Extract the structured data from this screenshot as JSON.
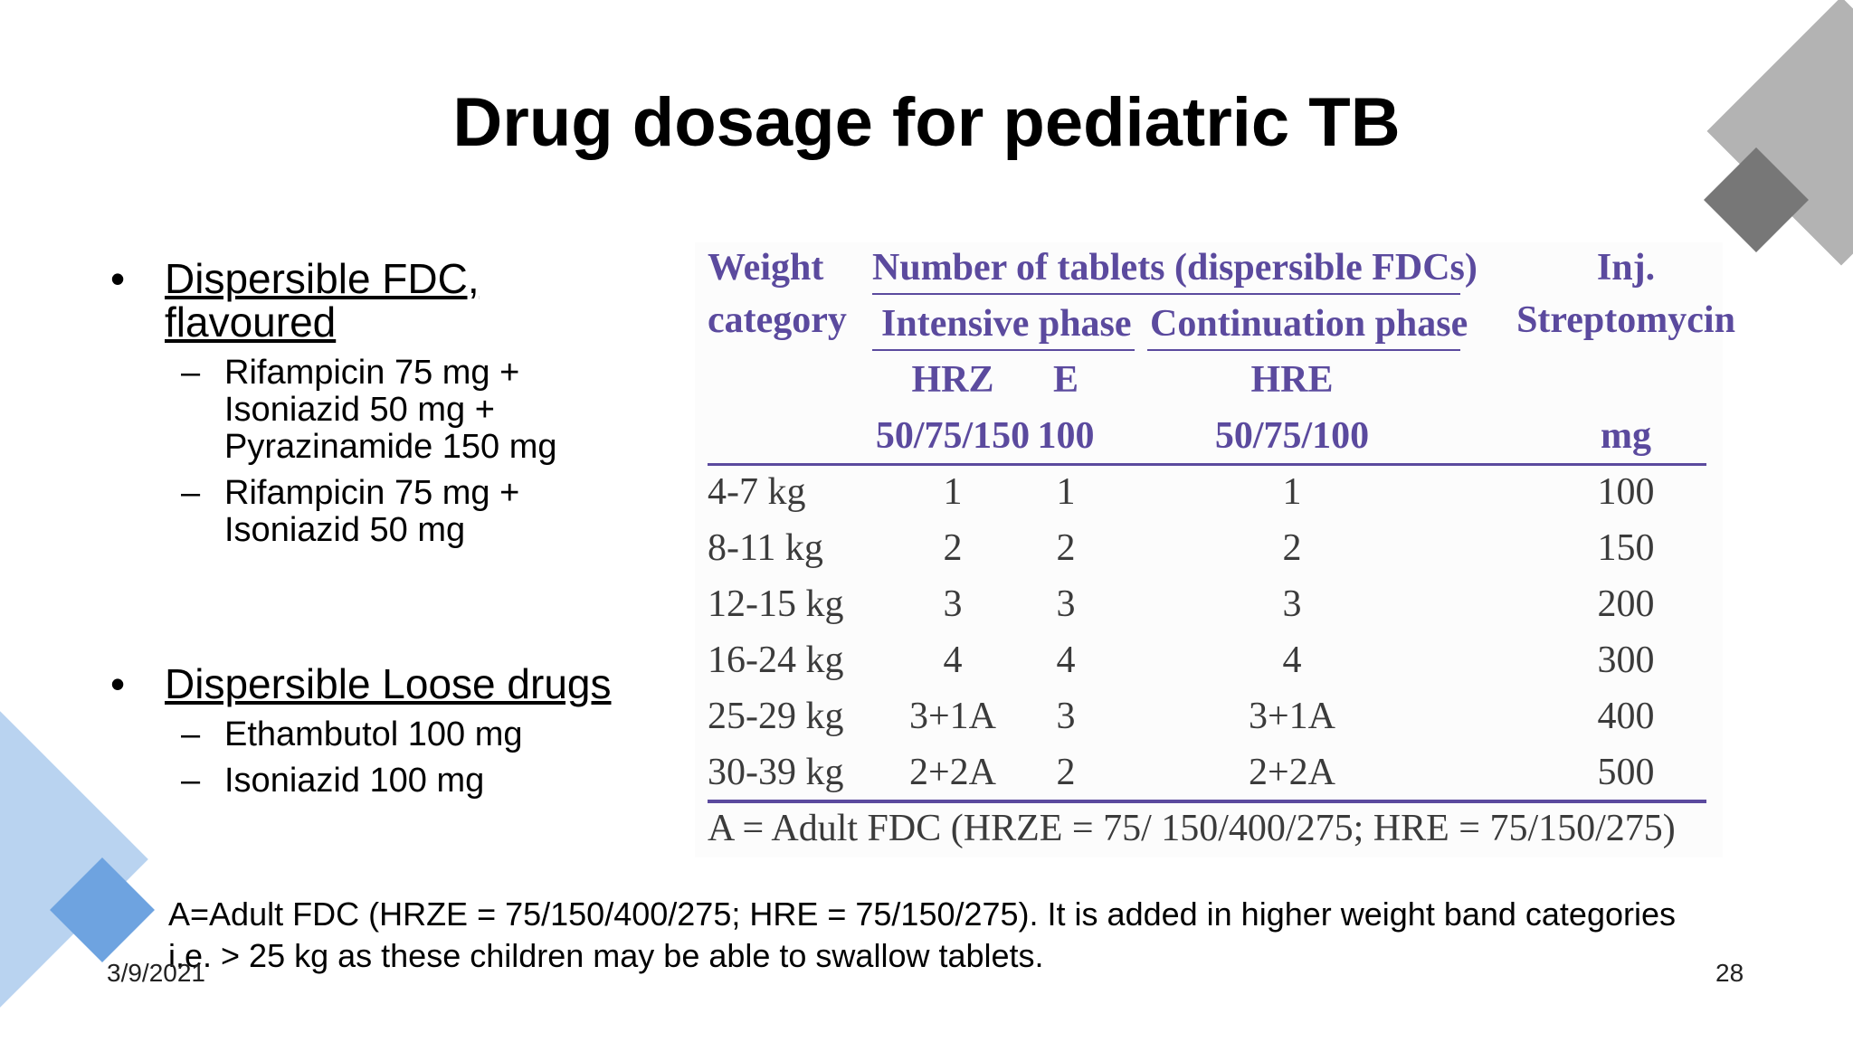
{
  "title": "Drug dosage for pediatric TB",
  "bullets": [
    {
      "heading_lines": [
        "Dispersible FDC,",
        "flavoured"
      ],
      "sub_items": [
        {
          "lines": [
            "Rifampicin 75 mg +",
            "Isoniazid 50 mg +",
            "Pyrazinamide 150 mg"
          ]
        },
        {
          "lines": [
            "Rifampicin 75 mg +",
            "Isoniazid 50 mg"
          ]
        }
      ]
    },
    {
      "heading_lines": [
        "Dispersible Loose drugs"
      ],
      "sub_items": [
        {
          "lines": [
            "Ethambutol 100 mg"
          ]
        },
        {
          "lines": [
            "Isoniazid 100 mg"
          ]
        }
      ]
    }
  ],
  "bullet_symbol": "•",
  "dash_symbol": "–",
  "table": {
    "header": {
      "weight": [
        "Weight",
        "category"
      ],
      "tablets_group": "Number of tablets (dispersible FDCs)",
      "intensive_phase": "Intensive phase",
      "continuation_phase": "Continuation phase",
      "injection": [
        "Inj.",
        "Streptomycin"
      ],
      "drugs": [
        "HRZ",
        "E",
        "HRE"
      ],
      "strengths": [
        "50/75/150",
        "100",
        "50/75/100"
      ],
      "injection_unit": "mg"
    },
    "rows": [
      [
        "4-7 kg",
        "1",
        "1",
        "1",
        "100"
      ],
      [
        "8-11 kg",
        "2",
        "2",
        "2",
        "150"
      ],
      [
        "12-15 kg",
        "3",
        "3",
        "3",
        "200"
      ],
      [
        "16-24 kg",
        "4",
        "4",
        "4",
        "300"
      ],
      [
        "25-29 kg",
        "3+1A",
        "3",
        "3+1A",
        "400"
      ],
      [
        "30-39 kg",
        "2+2A",
        "2",
        "2+2A",
        "500"
      ]
    ],
    "note": "A = Adult FDC (HRZE = 75/ 150/400/275; HRE = 75/150/275)"
  },
  "footnote": "A=Adult FDC (HRZE = 75/150/400/275; HRE = 75/150/275). It is added in higher weight band categories i.e. > 25 kg as these children may be able to swallow tablets.",
  "date": "3/9/2021",
  "page_number": "28",
  "colors": {
    "table_header": "#5b4a9e",
    "table_text": "#3b3b3b",
    "deco_gray": "#b3b3b3",
    "deco_gray_dark": "#777777",
    "deco_blue_light": "#b9d3f0",
    "deco_blue": "#6ea3e0"
  }
}
